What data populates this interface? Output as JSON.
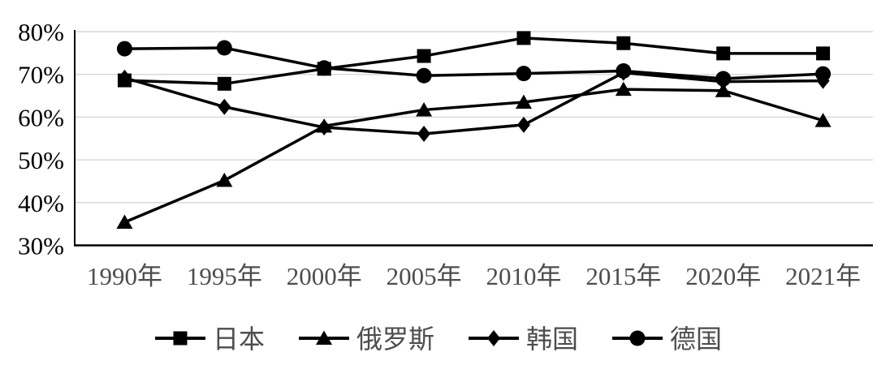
{
  "chart_data": {
    "type": "line",
    "categories": [
      "1990年",
      "1995年",
      "2000年",
      "2005年",
      "2010年",
      "2015年",
      "2020年",
      "2021年"
    ],
    "series": [
      {
        "id": "japan",
        "name": "日本",
        "marker": "square",
        "values": [
          68.6,
          67.8,
          71.3,
          74.3,
          78.5,
          77.3,
          74.9,
          74.9
        ]
      },
      {
        "id": "russia",
        "name": "俄罗斯",
        "marker": "triangle",
        "values": [
          35.4,
          45.2,
          57.9,
          61.7,
          63.5,
          66.5,
          66.2,
          59.2
        ]
      },
      {
        "id": "korea",
        "name": "韩国",
        "marker": "diamond",
        "values": [
          69.2,
          62.4,
          57.6,
          56.1,
          58.2,
          70.4,
          68.3,
          68.5
        ]
      },
      {
        "id": "germany",
        "name": "德国",
        "marker": "circle",
        "values": [
          76.0,
          76.2,
          71.5,
          69.7,
          70.2,
          70.8,
          69.0,
          70.1
        ]
      }
    ],
    "title": "",
    "xlabel": "",
    "ylabel": "",
    "ylim": [
      30,
      80
    ],
    "ytick_step": 10,
    "ytick_labels": [
      "30%",
      "40%",
      "50%",
      "60%",
      "70%",
      "80%"
    ],
    "grid": true,
    "legend_position": "bottom",
    "colors": {
      "series_line": "#000000",
      "gridline": "#d9d9d9",
      "axis_line": "#000000",
      "ytick_text": "#000000",
      "xtick_text": "#4d4d4d",
      "legend_text": "#4d4d4d",
      "background": "#ffffff"
    }
  }
}
